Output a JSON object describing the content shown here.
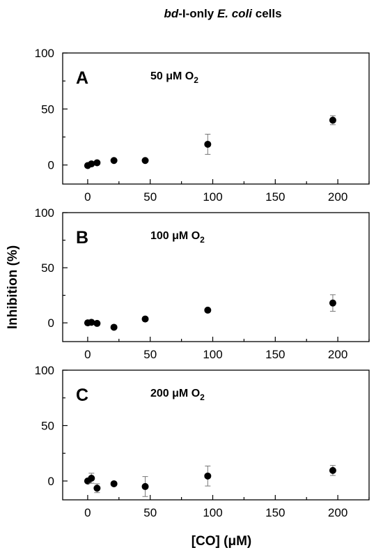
{
  "figure_title": {
    "part1": "bd",
    "part2": "-I-only ",
    "part3": "E. coli",
    "part4": " cells"
  },
  "ylabel": "Inhibition (%)",
  "xlabel": "[CO] (μM)",
  "chart_data": [
    {
      "type": "scatter",
      "panel": "A",
      "annotation": {
        "prefix": "50 μM O",
        "sub": "2"
      },
      "x": [
        0,
        3,
        7.5,
        21,
        46,
        96,
        196
      ],
      "y": [
        -0.5,
        1,
        2,
        4,
        4,
        18.5,
        40
      ],
      "error": [
        null,
        null,
        null,
        null,
        null,
        9,
        4
      ],
      "xlim": [
        -20,
        225
      ],
      "ylim": [
        -17,
        100
      ],
      "xticks": [
        0,
        50,
        100,
        150,
        200
      ],
      "yticks": [
        0,
        50,
        100
      ]
    },
    {
      "type": "scatter",
      "panel": "B",
      "annotation": {
        "prefix": "100 μM O",
        "sub": "2"
      },
      "x": [
        0,
        3,
        7.5,
        21,
        46,
        96,
        196
      ],
      "y": [
        0,
        0.5,
        -0.5,
        -4,
        3.5,
        11.5,
        18
      ],
      "error": [
        null,
        null,
        null,
        null,
        null,
        null,
        7.5
      ],
      "xlim": [
        -20,
        225
      ],
      "ylim": [
        -17,
        100
      ],
      "xticks": [
        0,
        50,
        100,
        150,
        200
      ],
      "yticks": [
        0,
        50,
        100
      ]
    },
    {
      "type": "scatter",
      "panel": "C",
      "annotation": {
        "prefix": "200 μM O",
        "sub": "2"
      },
      "x": [
        0,
        3,
        7.5,
        21,
        46,
        96,
        196
      ],
      "y": [
        0,
        2.5,
        -6.5,
        -2.5,
        -5,
        4.5,
        9.5
      ],
      "error": [
        null,
        4.5,
        4,
        null,
        9,
        9,
        4.5
      ],
      "xlim": [
        -20,
        225
      ],
      "ylim": [
        -17,
        100
      ],
      "xticks": [
        0,
        50,
        100,
        150,
        200
      ],
      "yticks": [
        0,
        50,
        100
      ]
    }
  ]
}
